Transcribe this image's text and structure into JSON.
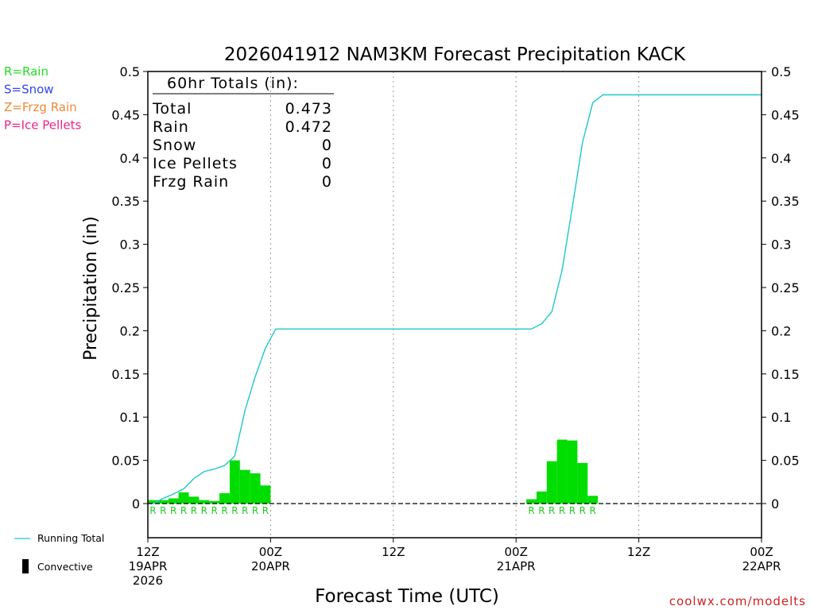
{
  "chart_data": {
    "type": "bar",
    "title": "2026041912 NAM3KM Forecast Precipitation KACK",
    "xlabel": "Forecast Time (UTC)",
    "ylabel": "Precipitation (in)",
    "ylim": [
      -0.04,
      0.5
    ],
    "xlim_hours": [
      0,
      60
    ],
    "yticks": [
      0,
      0.05,
      0.1,
      0.15,
      0.2,
      0.25,
      0.3,
      0.35,
      0.4,
      0.45,
      0.5
    ],
    "ytick_labels": [
      "0",
      "0.05",
      "0.1",
      "0.15",
      "0.2",
      "0.25",
      "0.3",
      "0.35",
      "0.4",
      "0.45",
      "0.5"
    ],
    "xticks": [
      {
        "hour": 0,
        "lines": [
          "12Z",
          "19APR",
          "2026"
        ]
      },
      {
        "hour": 12,
        "lines": [
          "00Z",
          "20APR"
        ]
      },
      {
        "hour": 24,
        "lines": [
          "12Z"
        ]
      },
      {
        "hour": 36,
        "lines": [
          "00Z",
          "21APR"
        ]
      },
      {
        "hour": 48,
        "lines": [
          "12Z"
        ]
      },
      {
        "hour": 60,
        "lines": [
          "00Z",
          "22APR"
        ]
      }
    ],
    "grid": "vertical dotted at 12-hour ticks",
    "legend_type_labels": [
      {
        "text": "R=Rain",
        "color": "#22dd22"
      },
      {
        "text": "S=Snow",
        "color": "#3344ee"
      },
      {
        "text": "Z=Frzg Rain",
        "color": "#ee8833"
      },
      {
        "text": "P=Ice Pellets",
        "color": "#ee2288"
      }
    ],
    "legend_series": [
      {
        "name": "Running Total",
        "kind": "line",
        "color": "#1cc8c8"
      },
      {
        "name": "Convective",
        "kind": "bar",
        "color": "#000000"
      }
    ],
    "totals": {
      "header": "60hr Totals (in):",
      "rows": [
        {
          "label": "Total",
          "value": "0.473"
        },
        {
          "label": "Rain",
          "value": "0.472"
        },
        {
          "label": "Snow",
          "value": "0"
        },
        {
          "label": "Ice Pellets",
          "value": "0"
        },
        {
          "label": "Frzg Rain",
          "value": "0"
        }
      ]
    },
    "bar_color": "#00dd00",
    "bars": [
      {
        "hour": 1,
        "value": 0.004
      },
      {
        "hour": 2,
        "value": 0.004
      },
      {
        "hour": 3,
        "value": 0.006
      },
      {
        "hour": 4,
        "value": 0.013
      },
      {
        "hour": 5,
        "value": 0.008
      },
      {
        "hour": 6,
        "value": 0.004
      },
      {
        "hour": 7,
        "value": 0.003
      },
      {
        "hour": 8,
        "value": 0.012
      },
      {
        "hour": 9,
        "value": 0.05
      },
      {
        "hour": 10,
        "value": 0.039
      },
      {
        "hour": 11,
        "value": 0.035
      },
      {
        "hour": 12,
        "value": 0.021
      },
      {
        "hour": 38,
        "value": 0.005
      },
      {
        "hour": 39,
        "value": 0.014
      },
      {
        "hour": 40,
        "value": 0.049
      },
      {
        "hour": 41,
        "value": 0.074
      },
      {
        "hour": 42,
        "value": 0.073
      },
      {
        "hour": 43,
        "value": 0.047
      },
      {
        "hour": 44,
        "value": 0.009
      }
    ],
    "type_markers": [
      {
        "hour": 1,
        "label": "R"
      },
      {
        "hour": 2,
        "label": "R"
      },
      {
        "hour": 3,
        "label": "R"
      },
      {
        "hour": 4,
        "label": "R"
      },
      {
        "hour": 5,
        "label": "R"
      },
      {
        "hour": 6,
        "label": "R"
      },
      {
        "hour": 7,
        "label": "R"
      },
      {
        "hour": 8,
        "label": "R"
      },
      {
        "hour": 9,
        "label": "R"
      },
      {
        "hour": 10,
        "label": "R"
      },
      {
        "hour": 11,
        "label": "R"
      },
      {
        "hour": 12,
        "label": "R"
      },
      {
        "hour": 38,
        "label": "R"
      },
      {
        "hour": 39,
        "label": "R"
      },
      {
        "hour": 40,
        "label": "R"
      },
      {
        "hour": 41,
        "label": "R"
      },
      {
        "hour": 42,
        "label": "R"
      },
      {
        "hour": 43,
        "label": "R"
      },
      {
        "hour": 44,
        "label": "R"
      }
    ],
    "running_total": {
      "name": "Running Total",
      "color": "#1cc8c8",
      "points": [
        [
          0.5,
          0.0
        ],
        [
          1.5,
          0.006
        ],
        [
          2.5,
          0.011
        ],
        [
          3.5,
          0.017
        ],
        [
          4.5,
          0.029
        ],
        [
          5.5,
          0.037
        ],
        [
          6.5,
          0.04
        ],
        [
          7.5,
          0.044
        ],
        [
          8.5,
          0.055
        ],
        [
          9.5,
          0.108
        ],
        [
          10.5,
          0.147
        ],
        [
          11.5,
          0.18
        ],
        [
          12.5,
          0.202
        ],
        [
          13.5,
          0.202
        ],
        [
          20,
          0.202
        ],
        [
          30,
          0.202
        ],
        [
          37.5,
          0.202
        ],
        [
          38.5,
          0.208
        ],
        [
          39.5,
          0.222
        ],
        [
          40.5,
          0.27
        ],
        [
          41.5,
          0.343
        ],
        [
          42.5,
          0.418
        ],
        [
          43.5,
          0.464
        ],
        [
          44.5,
          0.473
        ],
        [
          50,
          0.473
        ],
        [
          60,
          0.473
        ]
      ]
    }
  },
  "footer": {
    "credit": "coolwx.com/modelts"
  }
}
